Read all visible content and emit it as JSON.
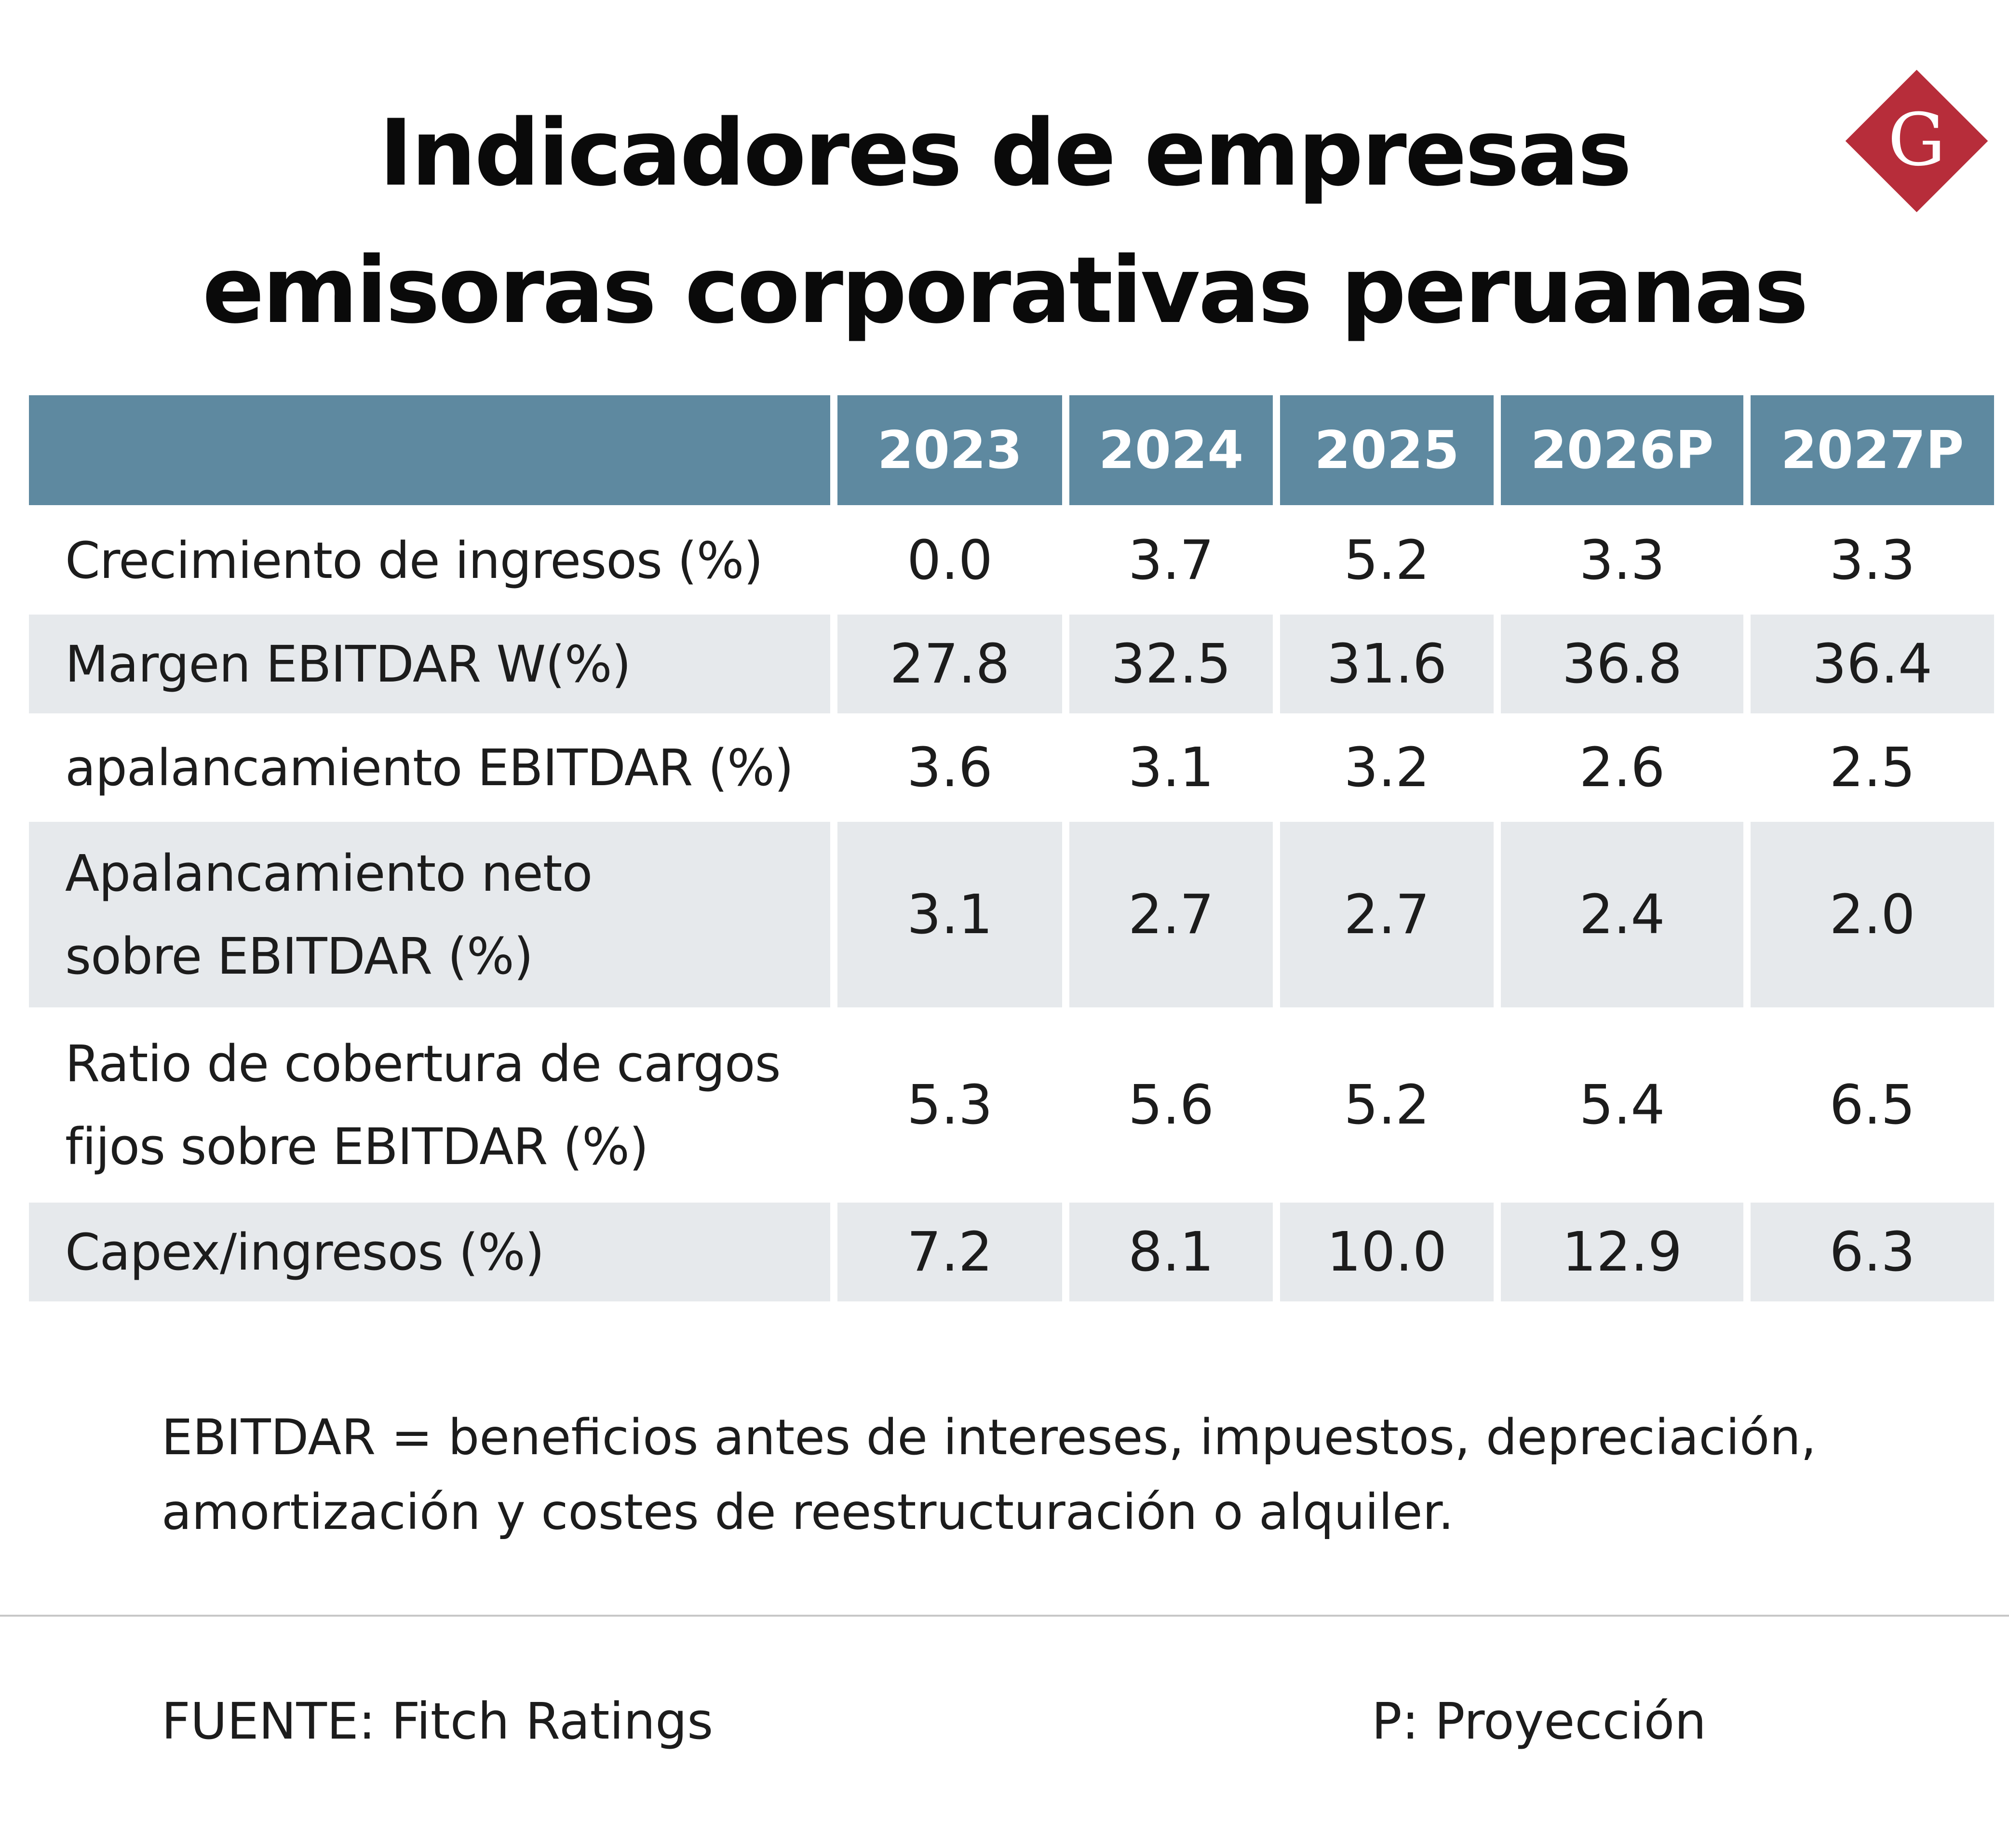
{
  "title": {
    "line1": "Indicadores de empresas",
    "line2": "emisoras corporativas peruanas"
  },
  "logo": {
    "icon": "diamond-g-logo",
    "letter": "G",
    "color": "#b72d3a"
  },
  "colors": {
    "header": "#5e89a0",
    "shaded_row": "#e6e9ec"
  },
  "chart_data": {
    "type": "table",
    "title": "Indicadores de empresas emisoras corporativas peruanas",
    "columns": [
      "2023",
      "2024",
      "2025",
      "2026P",
      "2027P"
    ],
    "rows": [
      {
        "label": "Crecimiento de ingresos (%)",
        "values": [
          "0.0",
          "3.7",
          "5.2",
          "3.3",
          "3.3"
        ]
      },
      {
        "label": "Margen EBITDAR W(%)",
        "values": [
          "27.8",
          "32.5",
          "31.6",
          "36.8",
          "36.4"
        ]
      },
      {
        "label": "apalancamiento EBITDAR (%)",
        "values": [
          "3.6",
          "3.1",
          "3.2",
          "2.6",
          "2.5"
        ]
      },
      {
        "label": "Apalancamiento neto\nsobre EBITDAR (%)",
        "values": [
          "3.1",
          "2.7",
          "2.7",
          "2.4",
          "2.0"
        ]
      },
      {
        "label": "Ratio de cobertura de cargos\nfijos sobre EBITDAR (%)",
        "values": [
          "5.3",
          "5.6",
          "5.2",
          "5.4",
          "6.5"
        ]
      },
      {
        "label": "Capex/ingresos (%)",
        "values": [
          "7.2",
          "8.1",
          "10.0",
          "12.9",
          "6.3"
        ]
      }
    ]
  },
  "footnote": {
    "line1": "EBITDAR = beneficios antes de intereses, impuestos, depreciación,",
    "line2": "amortización y costes de reestructuración o alquiler."
  },
  "source": "FUENTE: Fitch Ratings",
  "projection_note": "P: Proyección"
}
